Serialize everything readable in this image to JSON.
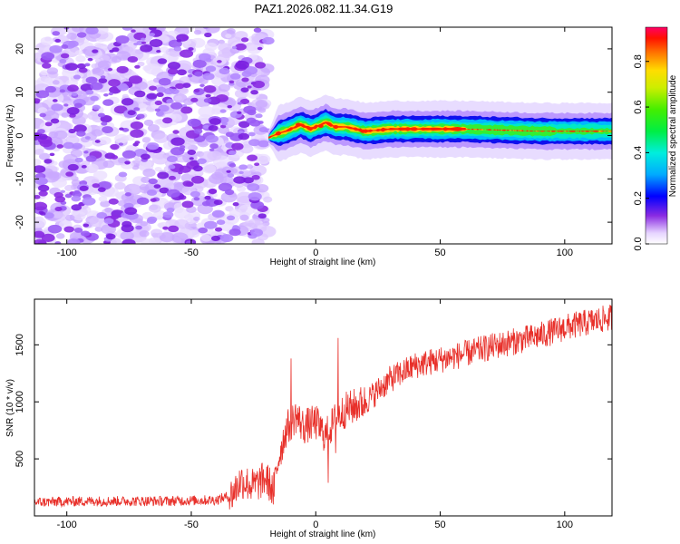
{
  "chart_data": [
    {
      "type": "heatmap",
      "title": "PAZ1.2026.082.11.34.G19",
      "xlabel": "Height of straight line (km)",
      "ylabel": "Frequency (Hz)",
      "xlim": [
        -113,
        119
      ],
      "ylim": [
        -25,
        25
      ],
      "xticks": [
        -100,
        -50,
        0,
        50,
        100
      ],
      "yticks": [
        20,
        10,
        0,
        -10,
        -20
      ],
      "noise_region_x": [
        -113,
        -19
      ],
      "signal_band_onset_x": -19,
      "signal_band_center_hz": [
        {
          "x": -19,
          "hz": -0.5
        },
        {
          "x": -15,
          "hz": 0.5
        },
        {
          "x": -12,
          "hz": 1.0
        },
        {
          "x": -6,
          "hz": 2.5
        },
        {
          "x": -2,
          "hz": 1.5
        },
        {
          "x": 0,
          "hz": 2.0
        },
        {
          "x": 4,
          "hz": 3.0
        },
        {
          "x": 8,
          "hz": 2.0
        },
        {
          "x": 12,
          "hz": 2.0
        },
        {
          "x": 20,
          "hz": 1.0
        },
        {
          "x": 30,
          "hz": 1.5
        },
        {
          "x": 60,
          "hz": 1.5
        },
        {
          "x": 90,
          "hz": 1.0
        },
        {
          "x": 119,
          "hz": 1.0
        }
      ],
      "colorbar": {
        "label": "Normalized spectral amplitude",
        "range": [
          0.0,
          0.95
        ],
        "ticks": [
          0.0,
          0.2,
          0.4,
          0.6,
          0.8
        ]
      }
    },
    {
      "type": "line",
      "xlabel": "Height of straight line (km)",
      "ylabel": "SNR (10 * v/v)",
      "xlim": [
        -113,
        119
      ],
      "ylim": [
        0,
        1900
      ],
      "xticks": [
        -100,
        -50,
        0,
        50,
        100
      ],
      "yticks": [
        500,
        1000,
        1500
      ],
      "color": "#e8302a",
      "trend": [
        {
          "x": -113,
          "y": 120
        },
        {
          "x": -90,
          "y": 130
        },
        {
          "x": -60,
          "y": 130
        },
        {
          "x": -40,
          "y": 140
        },
        {
          "x": -34,
          "y": 180
        },
        {
          "x": -30,
          "y": 310
        },
        {
          "x": -25,
          "y": 260
        },
        {
          "x": -20,
          "y": 330
        },
        {
          "x": -17,
          "y": 220
        },
        {
          "x": -15,
          "y": 500
        },
        {
          "x": -12,
          "y": 750
        },
        {
          "x": -8,
          "y": 880
        },
        {
          "x": -5,
          "y": 780
        },
        {
          "x": 0,
          "y": 820
        },
        {
          "x": 4,
          "y": 700
        },
        {
          "x": 8,
          "y": 850
        },
        {
          "x": 12,
          "y": 930
        },
        {
          "x": 20,
          "y": 1000
        },
        {
          "x": 30,
          "y": 1200
        },
        {
          "x": 40,
          "y": 1320
        },
        {
          "x": 50,
          "y": 1370
        },
        {
          "x": 60,
          "y": 1420
        },
        {
          "x": 70,
          "y": 1480
        },
        {
          "x": 80,
          "y": 1530
        },
        {
          "x": 90,
          "y": 1580
        },
        {
          "x": 100,
          "y": 1650
        },
        {
          "x": 110,
          "y": 1700
        },
        {
          "x": 119,
          "y": 1740
        }
      ],
      "spikes": [
        {
          "x": -17,
          "y": 100
        },
        {
          "x": -10,
          "y": 1380
        },
        {
          "x": 5,
          "y": 290
        },
        {
          "x": 8,
          "y": 550
        },
        {
          "x": 9,
          "y": 1560
        }
      ]
    }
  ]
}
